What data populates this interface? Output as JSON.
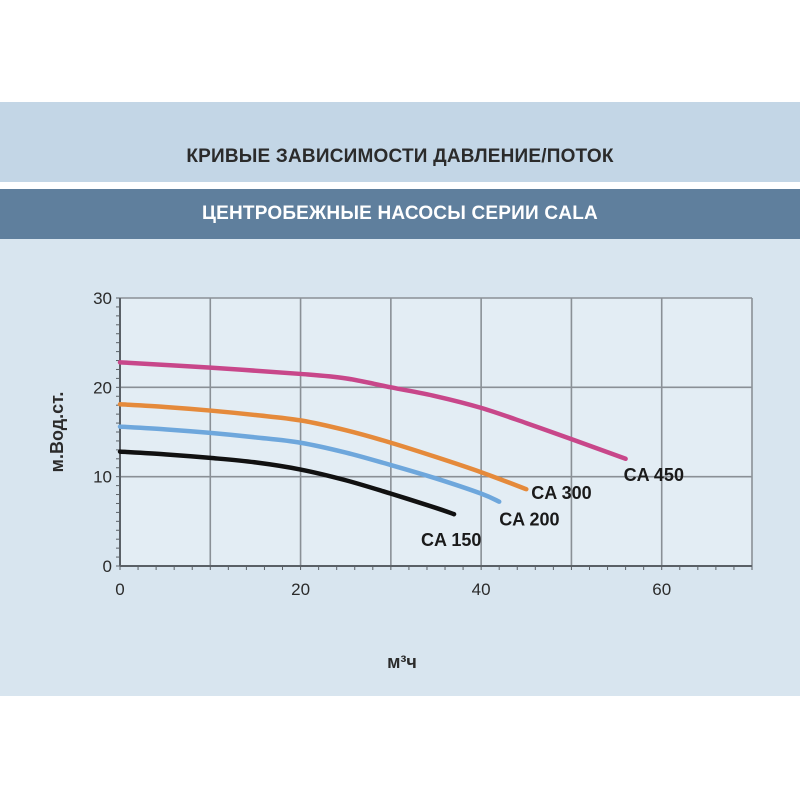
{
  "header": {
    "title": "КРИВЫЕ ЗАВИСИМОСТИ ДАВЛЕНИЕ/ПОТОК",
    "subtitle": "ЦЕНТРОБЕЖНЫЕ НАСОСЫ СЕРИИ CALA"
  },
  "chart_data": {
    "type": "line",
    "title": "КРИВЫЕ ЗАВИСИМОСТИ ДАВЛЕНИЕ/ПОТОК",
    "subtitle": "ЦЕНТРОБЕЖНЫЕ НАСОСЫ СЕРИИ CALA",
    "xlabel": "м³ч",
    "ylabel": "м.Вод.ст.",
    "xlim": [
      0,
      70
    ],
    "ylim": [
      0,
      30
    ],
    "xticks": [
      0,
      20,
      40,
      60
    ],
    "yticks": [
      0,
      10,
      20,
      30
    ],
    "xgrid": [
      0,
      10,
      20,
      30,
      40,
      50,
      60,
      70
    ],
    "ygrid": [
      0,
      10,
      20,
      30
    ],
    "grid": true,
    "legend": "none",
    "series": [
      {
        "name": "CA 450",
        "color": "#c8478a",
        "x": [
          0,
          10,
          20,
          25,
          30,
          35,
          40,
          45,
          50,
          56
        ],
        "y": [
          22.8,
          22.2,
          21.5,
          21.0,
          20.0,
          19.0,
          17.7,
          16.0,
          14.2,
          12.0
        ]
      },
      {
        "name": "CA 300",
        "color": "#e58a3b",
        "x": [
          0,
          5,
          10,
          15,
          20,
          25,
          30,
          35,
          40,
          45
        ],
        "y": [
          18.1,
          17.8,
          17.4,
          16.9,
          16.3,
          15.2,
          13.8,
          12.2,
          10.5,
          8.6
        ]
      },
      {
        "name": "CA 200",
        "color": "#6ea7dc",
        "x": [
          0,
          5,
          10,
          15,
          20,
          25,
          30,
          35,
          40,
          42
        ],
        "y": [
          15.6,
          15.3,
          14.9,
          14.4,
          13.8,
          12.7,
          11.3,
          9.8,
          8.1,
          7.2
        ]
      },
      {
        "name": "CA 150",
        "color": "#111111",
        "x": [
          0,
          5,
          10,
          15,
          20,
          25,
          30,
          35,
          37
        ],
        "y": [
          12.8,
          12.5,
          12.1,
          11.6,
          10.8,
          9.6,
          8.1,
          6.5,
          5.8
        ]
      }
    ],
    "series_labels": [
      "CA 450",
      "CA 300",
      "CA 200",
      "CA 150"
    ]
  }
}
